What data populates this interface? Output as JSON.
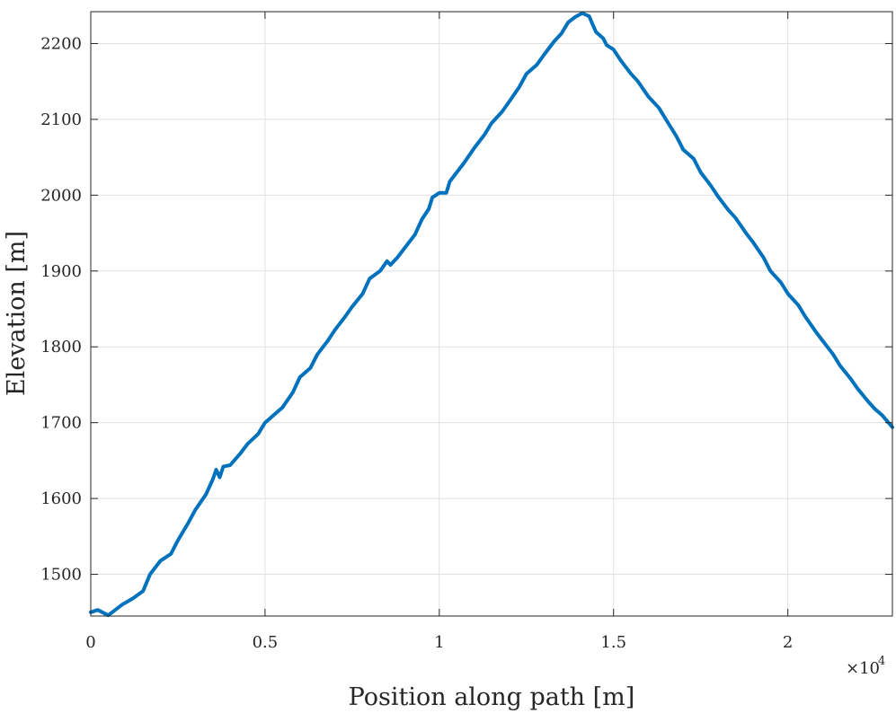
{
  "chart_data": {
    "type": "line",
    "title": "",
    "xlabel": "Position along path [m]",
    "ylabel": "Elevation [m]",
    "x_exponent_label": "×10",
    "x_exponent_power": "4",
    "xlim": [
      0,
      23000
    ],
    "ylim": [
      1445,
      2242
    ],
    "x_ticks": [
      0,
      5000,
      10000,
      15000,
      20000
    ],
    "x_tick_labels": [
      "0",
      "0.5",
      "1",
      "1.5",
      "2"
    ],
    "y_ticks": [
      1500,
      1600,
      1700,
      1800,
      1900,
      2000,
      2100,
      2200
    ],
    "y_tick_labels": [
      "1500",
      "1600",
      "1700",
      "1800",
      "1900",
      "2000",
      "2100",
      "2200"
    ],
    "grid": true,
    "line_color": "#0072BD",
    "series": [
      {
        "x": [
          0,
          200,
          500,
          900,
          1200,
          1500,
          1700,
          2000,
          2300,
          2500,
          2800,
          3000,
          3300,
          3500,
          3600,
          3700,
          3800,
          4000,
          4300,
          4500,
          4800,
          5000,
          5300,
          5500,
          5800,
          6000,
          6300,
          6500,
          6800,
          7000,
          7300,
          7500,
          7800,
          8000,
          8300,
          8500,
          8600,
          8800,
          9000,
          9300,
          9500,
          9700,
          9800,
          10000,
          10200,
          10300,
          10500,
          10700,
          11000,
          11300,
          11500,
          11800,
          12000,
          12300,
          12500,
          12800,
          13000,
          13300,
          13500,
          13700,
          13900,
          14100,
          14300,
          14400,
          14500,
          14700,
          14800,
          15000,
          15200,
          15500,
          15700,
          16000,
          16300,
          16500,
          16800,
          17000,
          17300,
          17500,
          17800,
          18000,
          18300,
          18500,
          18800,
          19000,
          19300,
          19500,
          19800,
          20000,
          20300,
          20500,
          20800,
          21000,
          21300,
          21500,
          21800,
          22000,
          22300,
          22500,
          22700,
          23000
        ],
        "y": [
          1450,
          1453,
          1446,
          1460,
          1468,
          1478,
          1500,
          1518,
          1527,
          1545,
          1568,
          1585,
          1605,
          1625,
          1638,
          1628,
          1642,
          1644,
          1660,
          1672,
          1685,
          1700,
          1712,
          1720,
          1740,
          1760,
          1772,
          1790,
          1808,
          1822,
          1840,
          1853,
          1870,
          1890,
          1900,
          1913,
          1908,
          1918,
          1930,
          1948,
          1968,
          1982,
          1997,
          2003,
          2003,
          2018,
          2030,
          2042,
          2062,
          2080,
          2095,
          2110,
          2123,
          2143,
          2160,
          2172,
          2185,
          2203,
          2213,
          2228,
          2235,
          2240,
          2236,
          2225,
          2215,
          2207,
          2198,
          2192,
          2178,
          2160,
          2150,
          2130,
          2115,
          2100,
          2078,
          2060,
          2048,
          2030,
          2012,
          1998,
          1980,
          1970,
          1950,
          1938,
          1918,
          1900,
          1885,
          1870,
          1855,
          1840,
          1820,
          1808,
          1790,
          1775,
          1758,
          1745,
          1728,
          1718,
          1710,
          1694
        ]
      }
    ]
  }
}
